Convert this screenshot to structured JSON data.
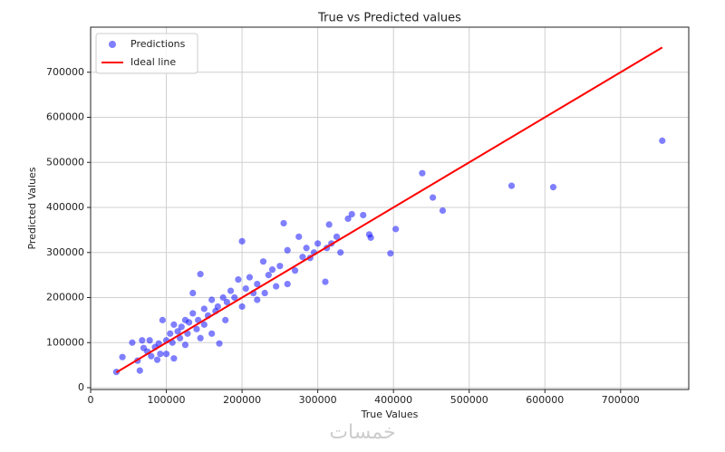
{
  "chart_data": {
    "type": "scatter",
    "title": "True vs Predicted values",
    "x_label": "True Values",
    "y_label": "Predicted Values",
    "xlim": [
      0,
      790000
    ],
    "ylim": [
      -4000,
      800000
    ],
    "xticks": [
      0,
      100000,
      200000,
      300000,
      400000,
      500000,
      600000,
      700000
    ],
    "yticks": [
      0,
      100000,
      200000,
      300000,
      400000,
      500000,
      600000,
      700000
    ],
    "grid": true,
    "legend": "upper-left",
    "series": [
      {
        "name": "Predictions",
        "type": "scatter",
        "color": "#0000ff",
        "x": [
          755000,
          611000,
          556000,
          465000,
          452000,
          438000,
          403000,
          396000,
          370000,
          368000,
          360000,
          345000,
          340000,
          330000,
          325000,
          315000,
          318000,
          312000,
          310000,
          300000,
          295000,
          290000,
          285000,
          280000,
          275000,
          270000,
          260000,
          255000,
          250000,
          245000,
          240000,
          235000,
          228000,
          220000,
          215000,
          210000,
          200000,
          205000,
          195000,
          190000,
          185000,
          180000,
          175000,
          170000,
          168000,
          165000,
          160000,
          155000,
          150000,
          145000,
          142000,
          140000,
          135000,
          130000,
          128000,
          125000,
          120000,
          118000,
          115000,
          110000,
          108000,
          105000,
          100000,
          95000,
          92000,
          90000,
          88000,
          85000,
          80000,
          78000,
          75000,
          70000,
          68000,
          65000,
          62000,
          55000,
          42000,
          34000,
          135000,
          160000,
          150000,
          178000,
          200000,
          220000,
          260000,
          230000,
          145000,
          125000,
          100000,
          110000
        ],
        "values": [
          548000,
          445000,
          448000,
          393000,
          422000,
          476000,
          352000,
          298000,
          333000,
          340000,
          383000,
          385000,
          375000,
          300000,
          335000,
          362000,
          320000,
          310000,
          235000,
          320000,
          300000,
          288000,
          310000,
          290000,
          335000,
          260000,
          305000,
          365000,
          270000,
          225000,
          262000,
          250000,
          280000,
          230000,
          210000,
          245000,
          325000,
          220000,
          240000,
          200000,
          215000,
          190000,
          200000,
          98000,
          180000,
          170000,
          195000,
          160000,
          140000,
          252000,
          150000,
          130000,
          165000,
          145000,
          120000,
          150000,
          135000,
          110000,
          125000,
          140000,
          100000,
          120000,
          105000,
          150000,
          75000,
          98000,
          62000,
          90000,
          70000,
          105000,
          80000,
          88000,
          105000,
          38000,
          60000,
          100000,
          68000,
          35000,
          210000,
          120000,
          175000,
          150000,
          180000,
          195000,
          230000,
          210000,
          110000,
          95000,
          75000,
          65000
        ]
      },
      {
        "name": "Ideal line",
        "type": "line",
        "color": "#ff0000",
        "x": [
          34000,
          755000
        ],
        "values": [
          34000,
          755000
        ]
      }
    ]
  },
  "watermark": "خمسات"
}
